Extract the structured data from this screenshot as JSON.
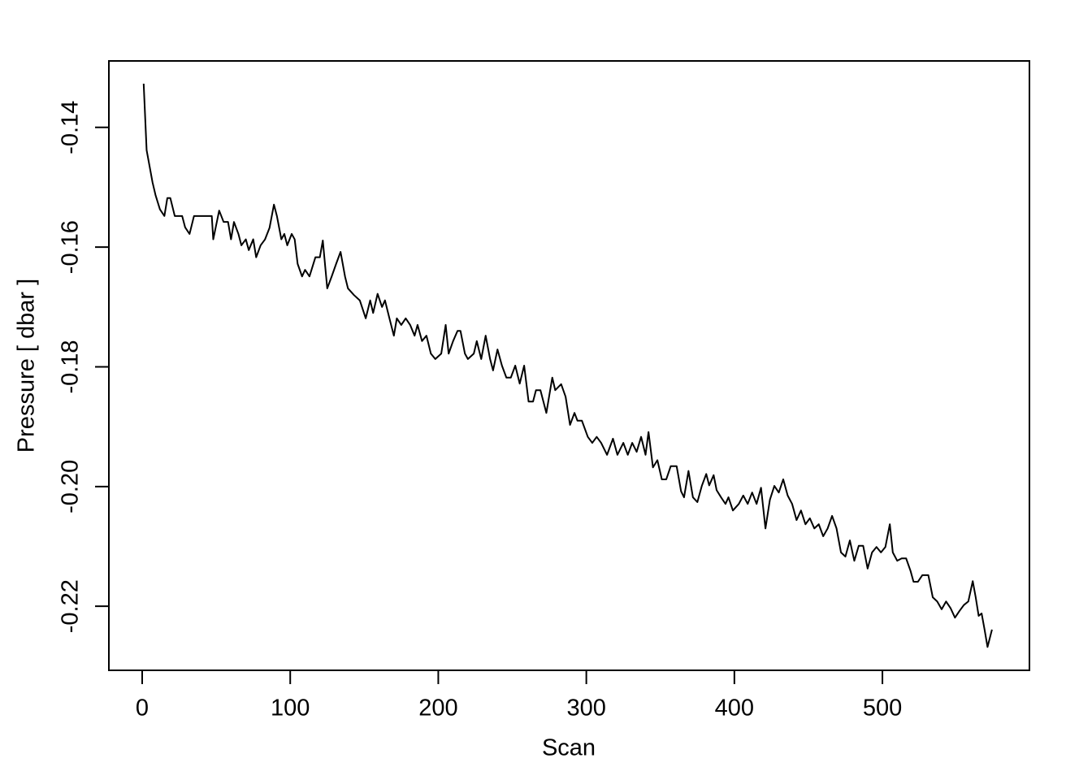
{
  "chart_data": {
    "type": "line",
    "x_label": "Scan",
    "y_label": "Pressure [ dbar ]",
    "color": "#000000",
    "xlim": [
      -22.5,
      599.3
    ],
    "ylim": [
      -0.2307,
      -0.1289
    ],
    "xticks": [
      0,
      100,
      200,
      300,
      400,
      500
    ],
    "yticks": [
      -0.22,
      {
        "value": -0.2,
        "label": "-0.20"
      },
      -0.18,
      -0.16,
      -0.14
    ],
    "x": [
      1,
      3,
      5,
      7,
      9,
      12,
      15,
      17,
      19,
      22,
      27,
      29,
      32,
      35,
      47,
      48,
      52,
      55,
      58,
      60,
      62,
      65,
      67,
      70,
      72,
      75,
      77,
      80,
      83,
      86,
      89,
      91,
      94,
      96,
      98,
      101,
      103,
      105,
      108,
      110,
      113,
      117,
      120,
      122,
      125,
      128,
      131,
      134,
      137,
      139,
      143,
      147,
      151,
      154,
      156,
      159,
      162,
      164,
      167,
      170,
      172,
      175,
      178,
      181,
      184,
      186,
      189,
      192,
      195,
      198,
      202,
      205,
      207,
      210,
      213,
      215,
      218,
      220,
      224,
      226,
      229,
      232,
      235,
      237,
      240,
      243,
      246,
      249,
      252,
      255,
      258,
      261,
      264,
      266,
      269,
      273,
      277,
      279,
      283,
      286,
      289,
      292,
      294,
      297,
      301,
      304,
      307,
      310,
      314,
      318,
      321,
      325,
      328,
      331,
      334,
      337,
      340,
      342,
      345,
      348,
      351,
      354,
      357,
      361,
      364,
      366,
      369,
      372,
      375,
      378,
      381,
      383,
      386,
      388,
      391,
      394,
      396,
      399,
      403,
      406,
      409,
      412,
      415,
      418,
      421,
      424,
      427,
      430,
      433,
      436,
      439,
      442,
      445,
      448,
      451,
      454,
      457,
      460,
      463,
      466,
      469,
      472,
      475,
      478,
      481,
      484,
      487,
      490,
      493,
      496,
      499,
      502,
      505,
      507,
      510,
      513,
      516,
      519,
      521,
      524,
      527,
      531,
      534,
      537,
      540,
      543,
      546,
      549,
      552,
      555,
      558,
      561,
      563,
      565,
      567,
      569,
      571,
      574
    ],
    "values": [
      -0.1327,
      -0.1438,
      -0.1465,
      -0.1492,
      -0.1513,
      -0.1537,
      -0.1548,
      -0.1518,
      -0.1518,
      -0.1548,
      -0.1548,
      -0.1567,
      -0.1578,
      -0.1548,
      -0.1548,
      -0.1587,
      -0.1539,
      -0.1558,
      -0.1558,
      -0.1587,
      -0.1558,
      -0.1578,
      -0.1597,
      -0.1587,
      -0.1605,
      -0.1587,
      -0.1617,
      -0.1597,
      -0.1587,
      -0.1568,
      -0.1529,
      -0.1548,
      -0.1587,
      -0.1578,
      -0.1597,
      -0.1578,
      -0.1587,
      -0.1628,
      -0.1649,
      -0.1638,
      -0.1649,
      -0.1617,
      -0.1617,
      -0.1589,
      -0.1669,
      -0.1649,
      -0.1628,
      -0.1608,
      -0.1649,
      -0.1669,
      -0.168,
      -0.1689,
      -0.1719,
      -0.1689,
      -0.171,
      -0.1678,
      -0.17,
      -0.1689,
      -0.1719,
      -0.1748,
      -0.1719,
      -0.173,
      -0.1719,
      -0.173,
      -0.1748,
      -0.173,
      -0.1757,
      -0.1748,
      -0.1778,
      -0.1787,
      -0.1778,
      -0.173,
      -0.1778,
      -0.1757,
      -0.174,
      -0.174,
      -0.1778,
      -0.1787,
      -0.1778,
      -0.1757,
      -0.1787,
      -0.1748,
      -0.1787,
      -0.1806,
      -0.1771,
      -0.1798,
      -0.1818,
      -0.1818,
      -0.1798,
      -0.1828,
      -0.1798,
      -0.1858,
      -0.1858,
      -0.1839,
      -0.1839,
      -0.1877,
      -0.1818,
      -0.1839,
      -0.1829,
      -0.185,
      -0.1897,
      -0.1877,
      -0.189,
      -0.189,
      -0.1917,
      -0.1927,
      -0.1917,
      -0.1927,
      -0.1947,
      -0.192,
      -0.1947,
      -0.1927,
      -0.1947,
      -0.1927,
      -0.1942,
      -0.1917,
      -0.1947,
      -0.1909,
      -0.1968,
      -0.1956,
      -0.1988,
      -0.1988,
      -0.1966,
      -0.1966,
      -0.2008,
      -0.2018,
      -0.1974,
      -0.2018,
      -0.2026,
      -0.1999,
      -0.1979,
      -0.1998,
      -0.1981,
      -0.2006,
      -0.2018,
      -0.2029,
      -0.2018,
      -0.204,
      -0.2029,
      -0.2015,
      -0.2029,
      -0.201,
      -0.2029,
      -0.2002,
      -0.207,
      -0.2022,
      -0.1999,
      -0.201,
      -0.1988,
      -0.2015,
      -0.2029,
      -0.2056,
      -0.204,
      -0.2063,
      -0.2053,
      -0.207,
      -0.2063,
      -0.2083,
      -0.207,
      -0.2049,
      -0.207,
      -0.211,
      -0.2117,
      -0.209,
      -0.2124,
      -0.2099,
      -0.2099,
      -0.2137,
      -0.211,
      -0.2101,
      -0.211,
      -0.2101,
      -0.2063,
      -0.211,
      -0.2124,
      -0.212,
      -0.212,
      -0.2141,
      -0.2159,
      -0.2159,
      -0.2148,
      -0.2148,
      -0.2185,
      -0.2192,
      -0.2205,
      -0.2192,
      -0.2203,
      -0.2219,
      -0.2208,
      -0.2198,
      -0.2192,
      -0.2158,
      -0.2185,
      -0.2216,
      -0.2212,
      -0.2239,
      -0.2268,
      -0.2239
    ]
  }
}
